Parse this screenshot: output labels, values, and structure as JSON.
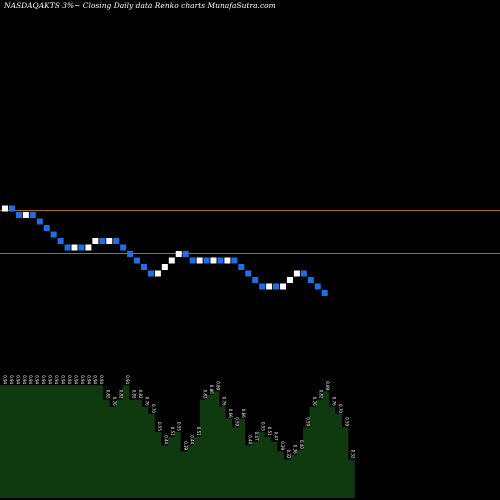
{
  "chart_data": {
    "type": "renko",
    "title": "NASDAQAKTS 3%~  Closing Daily data Renko charts MunafaSutra.com",
    "legend": "none",
    "grid": false,
    "colors": {
      "background": "#000000",
      "up_brick": "#ffffff",
      "down_brick": "#1e6fe6",
      "reference_line": "#b06a1a",
      "volume_fill": "#0f3a0f",
      "volume_text": "#ffffff"
    },
    "bricks": [
      1,
      -1,
      -1,
      1,
      -1,
      -1,
      -1,
      -1,
      -1,
      -1,
      1,
      -1,
      1,
      1,
      -1,
      1,
      -1,
      -1,
      -1,
      -1,
      -1,
      -1,
      1,
      1,
      1,
      1,
      -1,
      -1,
      1,
      -1,
      1,
      -1,
      1,
      -1,
      -1,
      -1,
      -1,
      -1,
      1,
      -1,
      1,
      1,
      1,
      -1,
      -1,
      -1,
      -1
    ],
    "reference_levels": [
      "upper",
      "lower"
    ],
    "volume_bars": [
      0.94,
      0.94,
      0.94,
      0.94,
      0.94,
      0.94,
      0.94,
      0.94,
      0.94,
      0.94,
      0.94,
      0.94,
      0.94,
      0.94,
      0.94,
      0.94,
      0.82,
      0.76,
      0.82,
      0.94,
      0.82,
      0.82,
      0.76,
      0.7,
      0.55,
      0.44,
      0.51,
      0.55,
      0.39,
      0.44,
      0.51,
      0.82,
      0.86,
      0.89,
      0.76,
      0.66,
      0.59,
      0.66,
      0.44,
      0.47,
      0.55,
      0.51,
      0.47,
      0.39,
      0.32,
      0.36,
      0.4,
      0.59,
      0.76,
      0.82,
      0.89,
      0.76,
      0.7,
      0.59,
      0.32
    ],
    "volume_labels": [
      "0.94",
      "0.94",
      "0.94",
      "0.94",
      "0.94",
      "0.94",
      "0.94",
      "0.94",
      "0.94",
      "0.94",
      "0.94",
      "0.94",
      "0.94",
      "0.94",
      "0.94",
      "0.94",
      "0.82",
      "0.76",
      "0.82",
      "0.94",
      "0.82",
      "0.82",
      "0.76",
      "0.70",
      "0.55",
      "0.44",
      "0.51",
      "0.55",
      "0.39",
      "0.44",
      "0.51",
      "0.82",
      "0.86",
      "0.89",
      "0.76",
      "0.66",
      "0.59",
      "0.66",
      "0.44",
      "0.47",
      "0.55",
      "0.51",
      "0.47",
      "0.39",
      "0.32",
      "0.36",
      "0.40",
      "0.59",
      "0.76",
      "0.82",
      "0.89",
      "0.76",
      "0.70",
      "0.59",
      "0.32"
    ]
  }
}
